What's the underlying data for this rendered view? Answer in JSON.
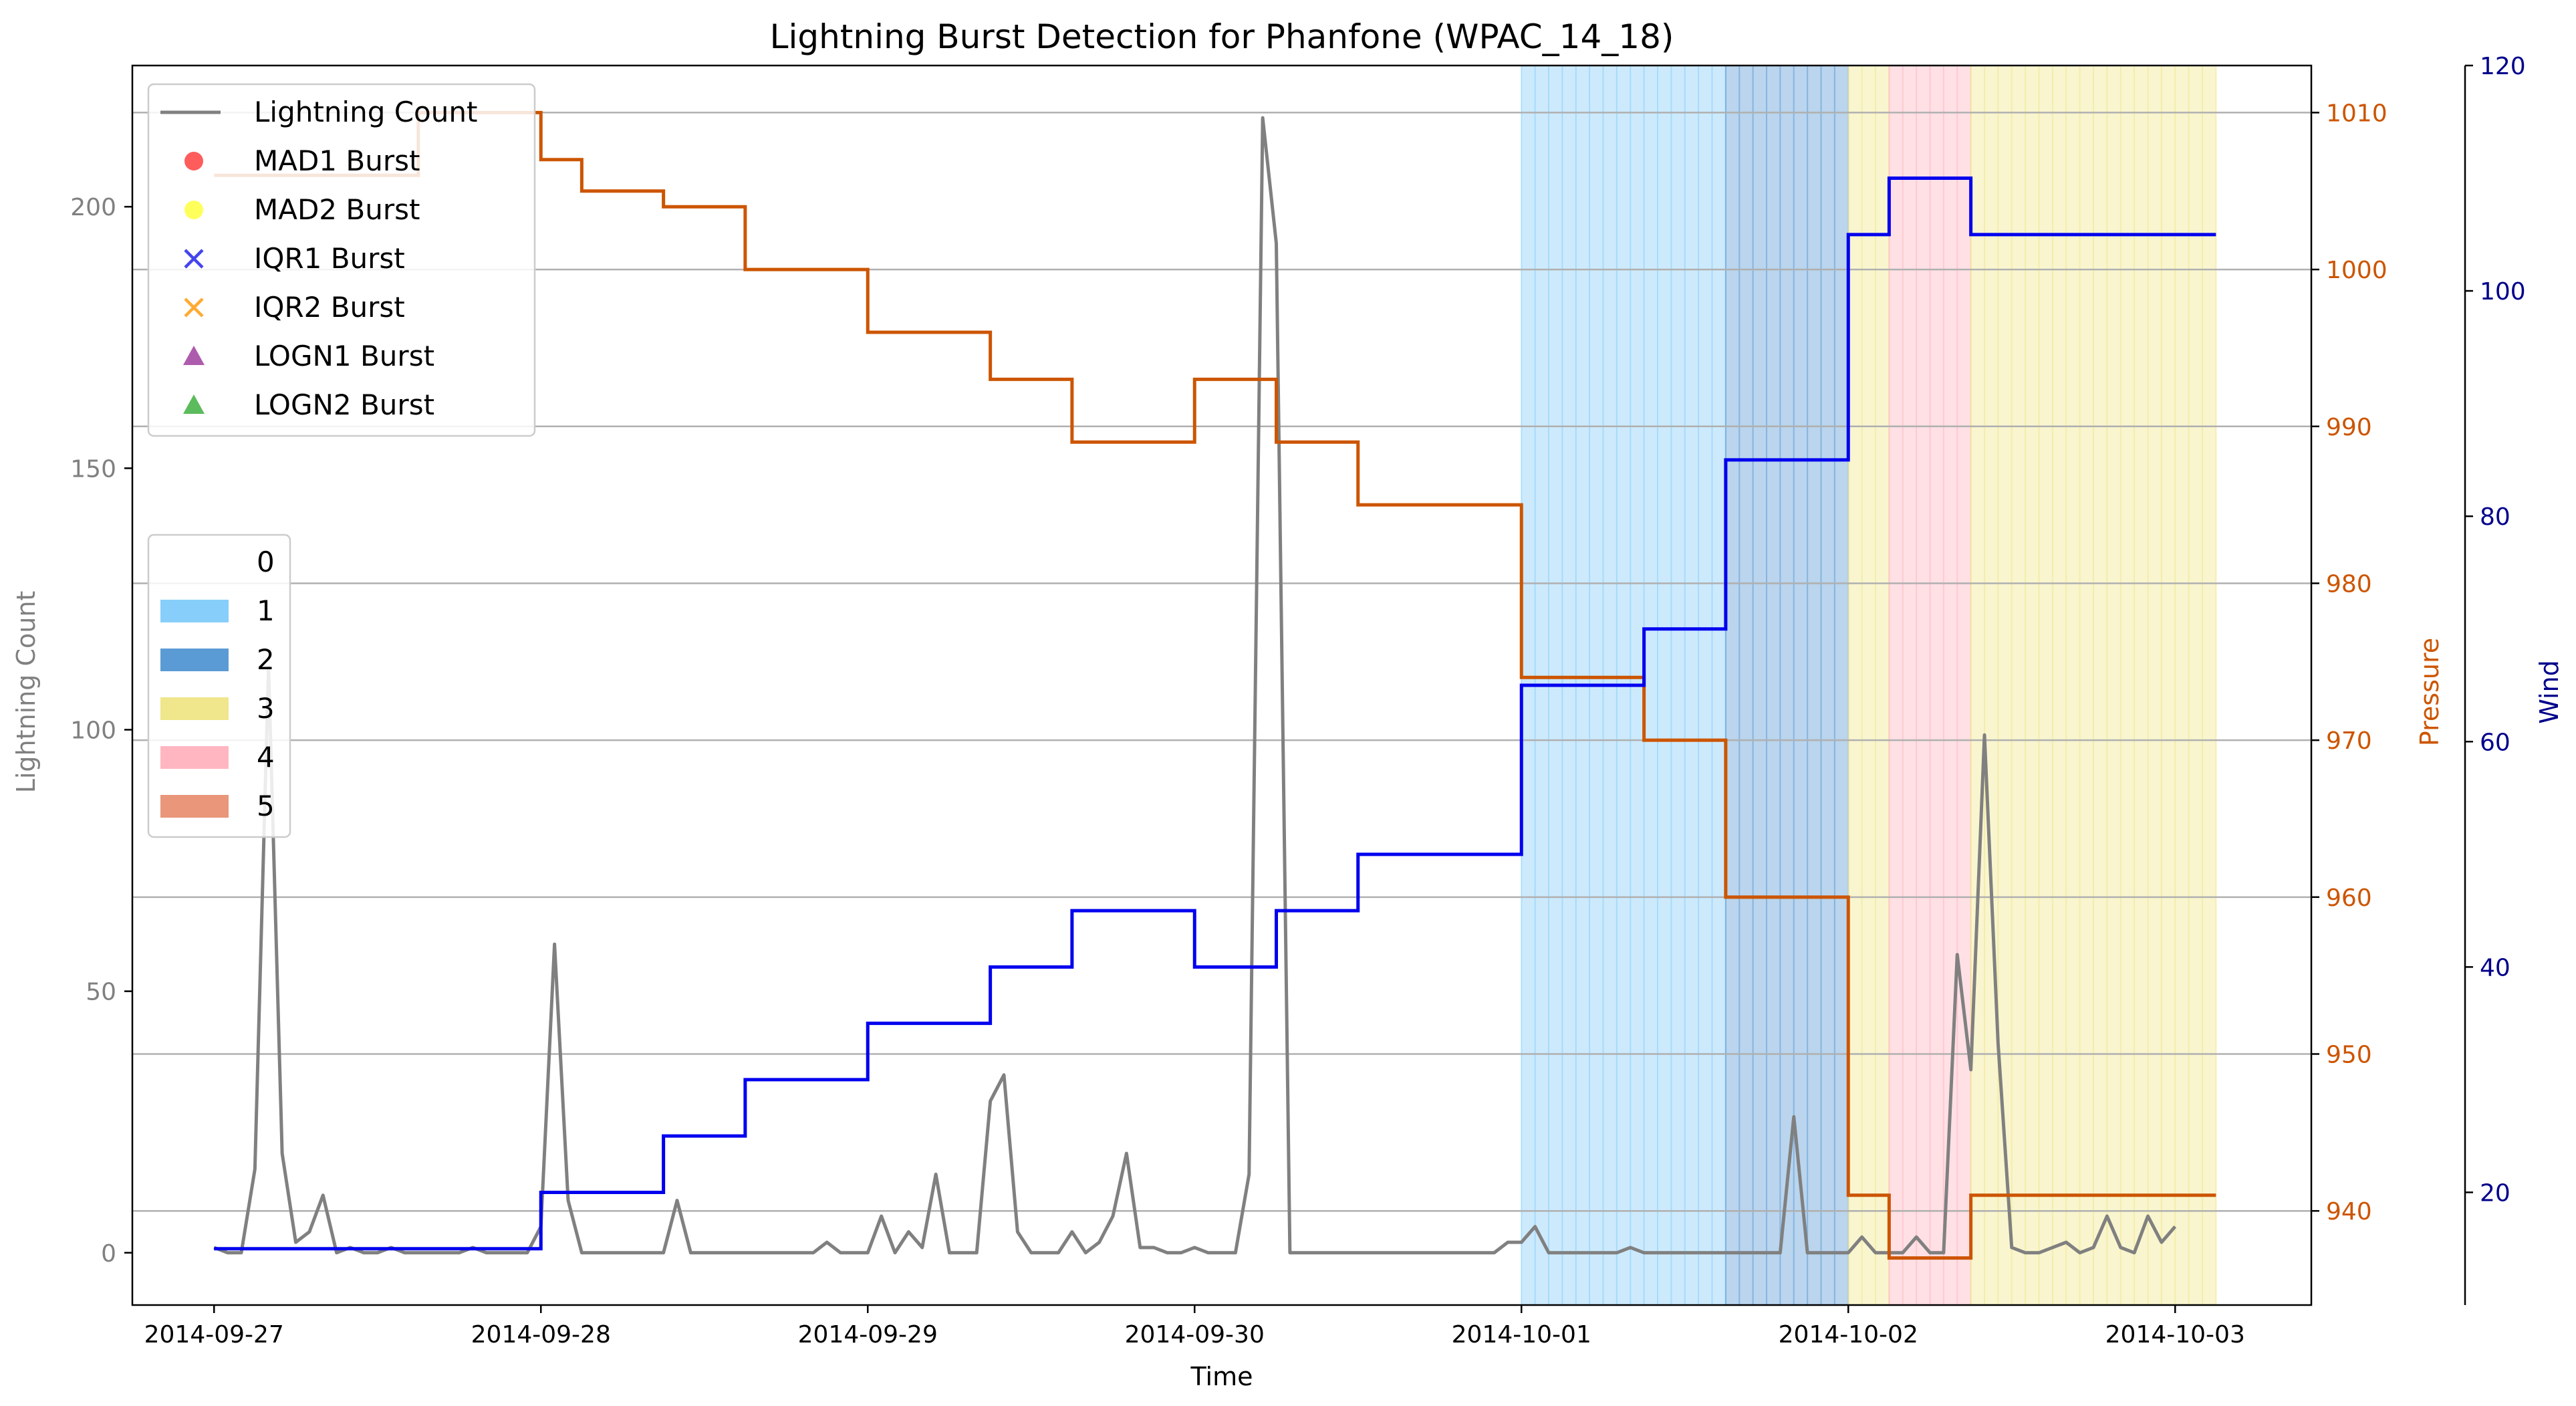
{
  "chart_data": {
    "type": "line",
    "title": "Lightning Burst Detection for Phanfone (WPAC_14_18)",
    "xlabel": "Time",
    "ylabel_left": "Lightning Count",
    "ylabel_pressure": "Pressure",
    "ylabel_wind": "Wind",
    "x_ticks": [
      "2014-09-27",
      "2014-09-28",
      "2014-09-29",
      "2014-09-30",
      "2014-10-01",
      "2014-10-02",
      "2014-10-03"
    ],
    "xlim": [
      "2014-09-26T18:00",
      "2014-10-03T10:00"
    ],
    "left_axis": {
      "ylim": [
        -10,
        227
      ],
      "ticks": [
        0,
        50,
        100,
        150,
        200
      ]
    },
    "pressure_axis": {
      "ylim": [
        934,
        1013
      ],
      "ticks": [
        940,
        950,
        960,
        970,
        980,
        990,
        1000,
        1010
      ]
    },
    "wind_axis": {
      "ylim": [
        10,
        120
      ],
      "ticks": [
        20,
        40,
        60,
        80,
        100,
        120
      ]
    },
    "grid": "horizontal",
    "colors": {
      "lightning": "#808080",
      "pressure": "#cc5500",
      "wind": "#0000ee",
      "wind_axis": "#00008b",
      "grid": "#b0b0b0",
      "cat1": "#87cefa",
      "cat2": "#5b9bd5",
      "cat3": "#f0e68c",
      "cat4": "#ffb6c1",
      "cat5": "#e9967a"
    },
    "legend_markers": {
      "title_label": "Lightning Count",
      "items": [
        {
          "label": "MAD1 Burst",
          "marker": "circle",
          "color": "#ff3333"
        },
        {
          "label": "MAD2 Burst",
          "marker": "circle",
          "color": "#ffff33"
        },
        {
          "label": "IQR1 Burst",
          "marker": "x",
          "color": "#4444ee"
        },
        {
          "label": "IQR2 Burst",
          "marker": "x",
          "color": "#ffaa33"
        },
        {
          "label": "LOGN1 Burst",
          "marker": "triangle",
          "color": "#993399"
        },
        {
          "label": "LOGN2 Burst",
          "marker": "triangle",
          "color": "#33aa33"
        }
      ],
      "placement": "upper-left"
    },
    "legend_categories": {
      "items": [
        {
          "label": "0",
          "color": ""
        },
        {
          "label": "1",
          "color": "#87cefa"
        },
        {
          "label": "2",
          "color": "#5b9bd5"
        },
        {
          "label": "3",
          "color": "#f0e68c"
        },
        {
          "label": "4",
          "color": "#ffb6c1"
        },
        {
          "label": "5",
          "color": "#e9967a"
        }
      ],
      "placement": "center-left"
    },
    "category_bands": [
      {
        "category": 1,
        "start": "2014-10-01T00:00",
        "end": "2014-10-01T15:00"
      },
      {
        "category": 2,
        "start": "2014-10-01T15:00",
        "end": "2014-10-02T00:00"
      },
      {
        "category": 3,
        "start": "2014-10-02T00:00",
        "end": "2014-10-02T03:00"
      },
      {
        "category": 4,
        "start": "2014-10-02T03:00",
        "end": "2014-10-02T09:00"
      },
      {
        "category": 3,
        "start": "2014-10-02T09:00",
        "end": "2014-10-03T03:00"
      }
    ],
    "wind": [
      [
        "2014-09-27T00:00",
        15
      ],
      [
        "2014-09-28T00:00",
        20
      ],
      [
        "2014-09-28T09:00",
        25
      ],
      [
        "2014-09-28T15:00",
        30
      ],
      [
        "2014-09-29T00:00",
        35
      ],
      [
        "2014-09-29T09:00",
        40
      ],
      [
        "2014-09-29T15:00",
        45
      ],
      [
        "2014-09-30T00:00",
        40
      ],
      [
        "2014-09-30T06:00",
        45
      ],
      [
        "2014-09-30T12:00",
        50
      ],
      [
        "2014-10-01T00:00",
        65
      ],
      [
        "2014-10-01T09:00",
        70
      ],
      [
        "2014-10-01T15:00",
        85
      ],
      [
        "2014-10-02T00:00",
        105
      ],
      [
        "2014-10-02T03:00",
        110
      ],
      [
        "2014-10-02T09:00",
        105
      ],
      [
        "2014-10-03T03:00",
        105
      ]
    ],
    "pressure": [
      [
        "2014-09-27T00:00",
        1006
      ],
      [
        "2014-09-27T15:00",
        1010
      ],
      [
        "2014-09-28T00:00",
        1007
      ],
      [
        "2014-09-28T03:00",
        1005
      ],
      [
        "2014-09-28T09:00",
        1004
      ],
      [
        "2014-09-28T15:00",
        1000
      ],
      [
        "2014-09-29T00:00",
        996
      ],
      [
        "2014-09-29T09:00",
        993
      ],
      [
        "2014-09-29T15:00",
        989
      ],
      [
        "2014-09-30T00:00",
        993
      ],
      [
        "2014-09-30T06:00",
        989
      ],
      [
        "2014-09-30T12:00",
        985
      ],
      [
        "2014-10-01T00:00",
        974
      ],
      [
        "2014-10-01T09:00",
        970
      ],
      [
        "2014-10-01T15:00",
        960
      ],
      [
        "2014-10-02T00:00",
        941
      ],
      [
        "2014-10-02T03:00",
        937
      ],
      [
        "2014-10-02T09:00",
        941
      ],
      [
        "2014-10-03T03:00",
        941
      ]
    ],
    "lightning": [
      [
        "2014-09-27T00:00",
        1
      ],
      [
        "2014-09-27T01:00",
        0
      ],
      [
        "2014-09-27T02:00",
        0
      ],
      [
        "2014-09-27T03:00",
        16
      ],
      [
        "2014-09-27T04:00",
        112
      ],
      [
        "2014-09-27T05:00",
        19
      ],
      [
        "2014-09-27T06:00",
        2
      ],
      [
        "2014-09-27T07:00",
        4
      ],
      [
        "2014-09-27T08:00",
        11
      ],
      [
        "2014-09-27T09:00",
        0
      ],
      [
        "2014-09-27T10:00",
        1
      ],
      [
        "2014-09-27T11:00",
        0
      ],
      [
        "2014-09-27T12:00",
        0
      ],
      [
        "2014-09-27T13:00",
        1
      ],
      [
        "2014-09-27T14:00",
        0
      ],
      [
        "2014-09-27T15:00",
        0
      ],
      [
        "2014-09-27T16:00",
        0
      ],
      [
        "2014-09-27T17:00",
        0
      ],
      [
        "2014-09-27T18:00",
        0
      ],
      [
        "2014-09-27T19:00",
        1
      ],
      [
        "2014-09-27T20:00",
        0
      ],
      [
        "2014-09-27T21:00",
        0
      ],
      [
        "2014-09-27T22:00",
        0
      ],
      [
        "2014-09-27T23:00",
        0
      ],
      [
        "2014-09-28T00:00",
        5
      ],
      [
        "2014-09-28T01:00",
        59
      ],
      [
        "2014-09-28T02:00",
        10
      ],
      [
        "2014-09-28T03:00",
        0
      ],
      [
        "2014-09-28T09:00",
        0
      ],
      [
        "2014-09-28T10:00",
        10
      ],
      [
        "2014-09-28T11:00",
        0
      ],
      [
        "2014-09-28T12:00",
        0
      ],
      [
        "2014-09-28T20:00",
        0
      ],
      [
        "2014-09-28T21:00",
        2
      ],
      [
        "2014-09-28T22:00",
        0
      ],
      [
        "2014-09-29T00:00",
        0
      ],
      [
        "2014-09-29T01:00",
        7
      ],
      [
        "2014-09-29T02:00",
        0
      ],
      [
        "2014-09-29T03:00",
        4
      ],
      [
        "2014-09-29T04:00",
        1
      ],
      [
        "2014-09-29T05:00",
        15
      ],
      [
        "2014-09-29T06:00",
        0
      ],
      [
        "2014-09-29T08:00",
        0
      ],
      [
        "2014-09-29T09:00",
        29
      ],
      [
        "2014-09-29T10:00",
        34
      ],
      [
        "2014-09-29T11:00",
        4
      ],
      [
        "2014-09-29T12:00",
        0
      ],
      [
        "2014-09-29T14:00",
        0
      ],
      [
        "2014-09-29T15:00",
        4
      ],
      [
        "2014-09-29T16:00",
        0
      ],
      [
        "2014-09-29T17:00",
        2
      ],
      [
        "2014-09-29T18:00",
        7
      ],
      [
        "2014-09-29T19:00",
        19
      ],
      [
        "2014-09-29T20:00",
        1
      ],
      [
        "2014-09-29T21:00",
        1
      ],
      [
        "2014-09-29T22:00",
        0
      ],
      [
        "2014-09-29T23:00",
        0
      ],
      [
        "2014-09-30T00:00",
        1
      ],
      [
        "2014-09-30T01:00",
        0
      ],
      [
        "2014-09-30T03:00",
        0
      ],
      [
        "2014-09-30T04:00",
        15
      ],
      [
        "2014-09-30T05:00",
        217
      ],
      [
        "2014-09-30T06:00",
        193
      ],
      [
        "2014-09-30T07:00",
        0
      ],
      [
        "2014-09-30T22:00",
        0
      ],
      [
        "2014-09-30T23:00",
        2
      ],
      [
        "2014-10-01T00:00",
        2
      ],
      [
        "2014-10-01T01:00",
        5
      ],
      [
        "2014-10-01T02:00",
        0
      ],
      [
        "2014-10-01T07:00",
        0
      ],
      [
        "2014-10-01T08:00",
        1
      ],
      [
        "2014-10-01T09:00",
        0
      ],
      [
        "2014-10-01T19:00",
        0
      ],
      [
        "2014-10-01T20:00",
        26
      ],
      [
        "2014-10-01T21:00",
        0
      ],
      [
        "2014-10-02T00:00",
        0
      ],
      [
        "2014-10-02T01:00",
        3
      ],
      [
        "2014-10-02T02:00",
        0
      ],
      [
        "2014-10-02T04:00",
        0
      ],
      [
        "2014-10-02T05:00",
        3
      ],
      [
        "2014-10-02T06:00",
        0
      ],
      [
        "2014-10-02T07:00",
        0
      ],
      [
        "2014-10-02T08:00",
        57
      ],
      [
        "2014-10-02T09:00",
        35
      ],
      [
        "2014-10-02T10:00",
        99
      ],
      [
        "2014-10-02T11:00",
        40
      ],
      [
        "2014-10-02T12:00",
        1
      ],
      [
        "2014-10-02T13:00",
        0
      ],
      [
        "2014-10-02T14:00",
        0
      ],
      [
        "2014-10-02T15:00",
        1
      ],
      [
        "2014-10-02T16:00",
        2
      ],
      [
        "2014-10-02T17:00",
        0
      ],
      [
        "2014-10-02T18:00",
        1
      ],
      [
        "2014-10-02T19:00",
        7
      ],
      [
        "2014-10-02T20:00",
        1
      ],
      [
        "2014-10-02T21:00",
        0
      ],
      [
        "2014-10-02T22:00",
        7
      ],
      [
        "2014-10-02T23:00",
        2
      ],
      [
        "2014-10-03T00:00",
        5
      ]
    ]
  }
}
